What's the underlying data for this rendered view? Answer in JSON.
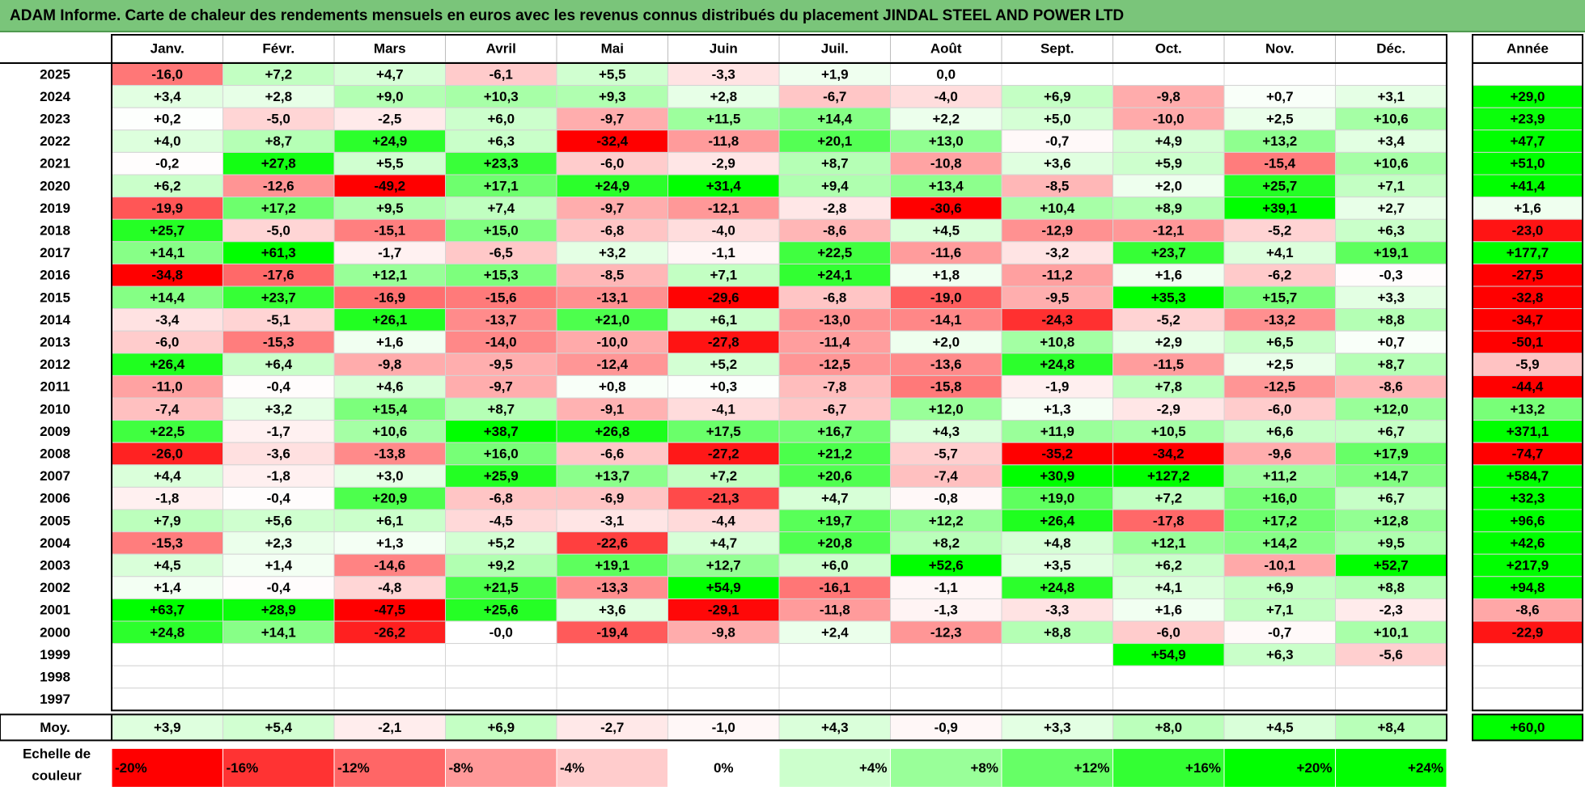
{
  "title": "ADAM Informe. Carte de chaleur des rendements mensuels en euros avec les revenus connus distribués du placement JINDAL STEEL AND POWER LTD",
  "colors": {
    "title_bg": "#7ac57a",
    "negative_max": "#ff0000",
    "positive_max": "#00ff00",
    "neutral": "#ffffff"
  },
  "chart_data": {
    "type": "heatmap",
    "months": [
      "Janv.",
      "Févr.",
      "Mars",
      "Avril",
      "Mai",
      "Juin",
      "Juil.",
      "Août",
      "Sept.",
      "Oct.",
      "Nov.",
      "Déc."
    ],
    "year_header": "Année",
    "rows": [
      {
        "year": "2025",
        "values": [
          "-16,0",
          "+7,2",
          "+4,7",
          "-6,1",
          "+5,5",
          "-3,3",
          "+1,9",
          "0,0",
          "",
          "",
          "",
          ""
        ],
        "annual": ""
      },
      {
        "year": "2024",
        "values": [
          "+3,4",
          "+2,8",
          "+9,0",
          "+10,3",
          "+9,3",
          "+2,8",
          "-6,7",
          "-4,0",
          "+6,9",
          "-9,8",
          "+0,7",
          "+3,1"
        ],
        "annual": "+29,0"
      },
      {
        "year": "2023",
        "values": [
          "+0,2",
          "-5,0",
          "-2,5",
          "+6,0",
          "-9,7",
          "+11,5",
          "+14,4",
          "+2,2",
          "+5,0",
          "-10,0",
          "+2,5",
          "+10,6"
        ],
        "annual": "+23,9"
      },
      {
        "year": "2022",
        "values": [
          "+4,0",
          "+8,7",
          "+24,9",
          "+6,3",
          "-32,4",
          "-11,8",
          "+20,1",
          "+13,0",
          "-0,7",
          "+4,9",
          "+13,2",
          "+3,4"
        ],
        "annual": "+47,7"
      },
      {
        "year": "2021",
        "values": [
          "-0,2",
          "+27,8",
          "+5,5",
          "+23,3",
          "-6,0",
          "-2,9",
          "+8,7",
          "-10,8",
          "+3,6",
          "+5,9",
          "-15,4",
          "+10,6"
        ],
        "annual": "+51,0"
      },
      {
        "year": "2020",
        "values": [
          "+6,2",
          "-12,6",
          "-49,2",
          "+17,1",
          "+24,9",
          "+31,4",
          "+9,4",
          "+13,4",
          "-8,5",
          "+2,0",
          "+25,7",
          "+7,1"
        ],
        "annual": "+41,4"
      },
      {
        "year": "2019",
        "values": [
          "-19,9",
          "+17,2",
          "+9,5",
          "+7,4",
          "-9,7",
          "-12,1",
          "-2,8",
          "-30,6",
          "+10,4",
          "+8,9",
          "+39,1",
          "+2,7"
        ],
        "annual": "+1,6"
      },
      {
        "year": "2018",
        "values": [
          "+25,7",
          "-5,0",
          "-15,1",
          "+15,0",
          "-6,8",
          "-4,0",
          "-8,6",
          "+4,5",
          "-12,9",
          "-12,1",
          "-5,2",
          "+6,3"
        ],
        "annual": "-23,0"
      },
      {
        "year": "2017",
        "values": [
          "+14,1",
          "+61,3",
          "-1,7",
          "-6,5",
          "+3,2",
          "-1,1",
          "+22,5",
          "-11,6",
          "-3,2",
          "+23,7",
          "+4,1",
          "+19,1"
        ],
        "annual": "+177,7"
      },
      {
        "year": "2016",
        "values": [
          "-34,8",
          "-17,6",
          "+12,1",
          "+15,3",
          "-8,5",
          "+7,1",
          "+24,1",
          "+1,8",
          "-11,2",
          "+1,6",
          "-6,2",
          "-0,3"
        ],
        "annual": "-27,5"
      },
      {
        "year": "2015",
        "values": [
          "+14,4",
          "+23,7",
          "-16,9",
          "-15,6",
          "-13,1",
          "-29,6",
          "-6,8",
          "-19,0",
          "-9,5",
          "+35,3",
          "+15,7",
          "+3,3"
        ],
        "annual": "-32,8"
      },
      {
        "year": "2014",
        "values": [
          "-3,4",
          "-5,1",
          "+26,1",
          "-13,7",
          "+21,0",
          "+6,1",
          "-13,0",
          "-14,1",
          "-24,3",
          "-5,2",
          "-13,2",
          "+8,8"
        ],
        "annual": "-34,7"
      },
      {
        "year": "2013",
        "values": [
          "-6,0",
          "-15,3",
          "+1,6",
          "-14,0",
          "-10,0",
          "-27,8",
          "-11,4",
          "+2,0",
          "+10,8",
          "+2,9",
          "+6,5",
          "+0,7"
        ],
        "annual": "-50,1"
      },
      {
        "year": "2012",
        "values": [
          "+26,4",
          "+6,4",
          "-9,8",
          "-9,5",
          "-12,4",
          "+5,2",
          "-12,5",
          "-13,6",
          "+24,8",
          "-11,5",
          "+2,5",
          "+8,7"
        ],
        "annual": "-5,9"
      },
      {
        "year": "2011",
        "values": [
          "-11,0",
          "-0,4",
          "+4,6",
          "-9,7",
          "+0,8",
          "+0,3",
          "-7,8",
          "-15,8",
          "-1,9",
          "+7,8",
          "-12,5",
          "-8,6"
        ],
        "annual": "-44,4"
      },
      {
        "year": "2010",
        "values": [
          "-7,4",
          "+3,2",
          "+15,4",
          "+8,7",
          "-9,1",
          "-4,1",
          "-6,7",
          "+12,0",
          "+1,3",
          "-2,9",
          "-6,0",
          "+12,0"
        ],
        "annual": "+13,2"
      },
      {
        "year": "2009",
        "values": [
          "+22,5",
          "-1,7",
          "+10,6",
          "+38,7",
          "+26,8",
          "+17,5",
          "+16,7",
          "+4,3",
          "+11,9",
          "+10,5",
          "+6,6",
          "+6,7"
        ],
        "annual": "+371,1"
      },
      {
        "year": "2008",
        "values": [
          "-26,0",
          "-3,6",
          "-13,8",
          "+16,0",
          "-6,6",
          "-27,2",
          "+21,2",
          "-5,7",
          "-35,2",
          "-34,2",
          "-9,6",
          "+17,9"
        ],
        "annual": "-74,7"
      },
      {
        "year": "2007",
        "values": [
          "+4,4",
          "-1,8",
          "+3,0",
          "+25,9",
          "+13,7",
          "+7,2",
          "+20,6",
          "-7,4",
          "+30,9",
          "+127,2",
          "+11,2",
          "+14,7"
        ],
        "annual": "+584,7"
      },
      {
        "year": "2006",
        "values": [
          "-1,8",
          "-0,4",
          "+20,9",
          "-6,8",
          "-6,9",
          "-21,3",
          "+4,7",
          "-0,8",
          "+19,0",
          "+7,2",
          "+16,0",
          "+6,7"
        ],
        "annual": "+32,3"
      },
      {
        "year": "2005",
        "values": [
          "+7,9",
          "+5,6",
          "+6,1",
          "-4,5",
          "-3,1",
          "-4,4",
          "+19,7",
          "+12,2",
          "+26,4",
          "-17,8",
          "+17,2",
          "+12,8"
        ],
        "annual": "+96,6"
      },
      {
        "year": "2004",
        "values": [
          "-15,3",
          "+2,3",
          "+1,3",
          "+5,2",
          "-22,6",
          "+4,7",
          "+20,8",
          "+8,2",
          "+4,8",
          "+12,1",
          "+14,2",
          "+9,5"
        ],
        "annual": "+42,6"
      },
      {
        "year": "2003",
        "values": [
          "+4,5",
          "+1,4",
          "-14,6",
          "+9,2",
          "+19,1",
          "+12,7",
          "+6,0",
          "+52,6",
          "+3,5",
          "+6,2",
          "-10,1",
          "+52,7"
        ],
        "annual": "+217,9"
      },
      {
        "year": "2002",
        "values": [
          "+1,4",
          "-0,4",
          "-4,8",
          "+21,5",
          "-13,3",
          "+54,9",
          "-16,1",
          "-1,1",
          "+24,8",
          "+4,1",
          "+6,9",
          "+8,8"
        ],
        "annual": "+94,8"
      },
      {
        "year": "2001",
        "values": [
          "+63,7",
          "+28,9",
          "-47,5",
          "+25,6",
          "+3,6",
          "-29,1",
          "-11,8",
          "-1,3",
          "-3,3",
          "+1,6",
          "+7,1",
          "-2,3"
        ],
        "annual": "-8,6"
      },
      {
        "year": "2000",
        "values": [
          "+24,8",
          "+14,1",
          "-26,2",
          "-0,0",
          "-19,4",
          "-9,8",
          "+2,4",
          "-12,3",
          "+8,8",
          "-6,0",
          "-0,7",
          "+10,1"
        ],
        "annual": "-22,9"
      },
      {
        "year": "1999",
        "values": [
          "",
          "",
          "",
          "",
          "",
          "",
          "",
          "",
          "",
          "+54,9",
          "+6,3",
          "-5,6"
        ],
        "annual": ""
      },
      {
        "year": "1998",
        "values": [
          "",
          "",
          "",
          "",
          "",
          "",
          "",
          "",
          "",
          "",
          "",
          ""
        ],
        "annual": ""
      },
      {
        "year": "1997",
        "values": [
          "",
          "",
          "",
          "",
          "",
          "",
          "",
          "",
          "",
          "",
          "",
          ""
        ],
        "annual": ""
      }
    ],
    "average": {
      "label": "Moy.",
      "values": [
        "+3,9",
        "+5,4",
        "-2,1",
        "+6,9",
        "-2,7",
        "-1,0",
        "+4,3",
        "-0,9",
        "+3,3",
        "+8,0",
        "+4,5",
        "+8,4"
      ],
      "annual": "+60,0"
    },
    "scale": {
      "label": "Echelle de couleur",
      "steps": [
        "-20%",
        "-16%",
        "-12%",
        "-8%",
        "-4%",
        "0%",
        "+4%",
        "+8%",
        "+12%",
        "+16%",
        "+20%",
        "+24%"
      ]
    }
  }
}
